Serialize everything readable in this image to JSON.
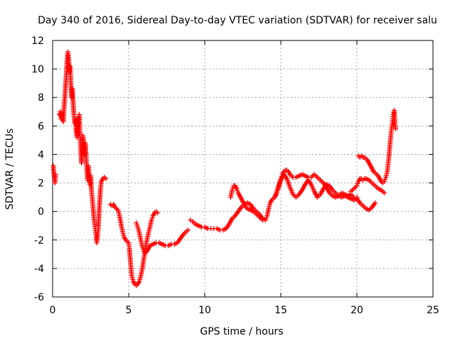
{
  "chart_data": {
    "type": "scatter",
    "title": "Day 340 of 2016, Sidereal Day-to-day VTEC variation (SDTVAR) for receiver salu",
    "xlabel": "GPS time / hours",
    "ylabel": "SDTVAR / TECUs",
    "xlim": [
      0,
      25
    ],
    "ylim": [
      -6,
      12
    ],
    "xticks": [
      "0",
      "5",
      "10",
      "15",
      "20",
      "25"
    ],
    "yticks": [
      "-6",
      "-4",
      "-2",
      "0",
      "2",
      "4",
      "6",
      "8",
      "10",
      "12"
    ],
    "grid": true,
    "marker": "+",
    "color": "#ff0000",
    "series": [
      {
        "name": "SDTVAR",
        "segments": [
          [
            [
              0.05,
              3.2
            ],
            [
              0.1,
              2.5
            ],
            [
              0.15,
              2.0
            ],
            [
              0.2,
              2.6
            ]
          ],
          [
            [
              0.45,
              6.8
            ],
            [
              0.5,
              7.0
            ],
            [
              0.55,
              6.5
            ],
            [
              0.6,
              6.9
            ],
            [
              0.7,
              6.3
            ],
            [
              0.75,
              7.2
            ],
            [
              0.8,
              8.0
            ],
            [
              0.85,
              8.8
            ],
            [
              0.9,
              9.6
            ],
            [
              0.95,
              10.5
            ],
            [
              1.0,
              11.2
            ],
            [
              1.05,
              10.8
            ],
            [
              1.1,
              9.8
            ],
            [
              1.15,
              10.2
            ],
            [
              1.2,
              9.0
            ],
            [
              1.25,
              8.0
            ],
            [
              1.3,
              8.6
            ],
            [
              1.35,
              7.6
            ],
            [
              1.4,
              6.8
            ],
            [
              1.45,
              6.2
            ],
            [
              1.5,
              6.4
            ],
            [
              1.55,
              5.6
            ],
            [
              1.6,
              5.2
            ],
            [
              1.65,
              6.5
            ],
            [
              1.7,
              6.0
            ],
            [
              1.75,
              6.8
            ],
            [
              1.8,
              5.4
            ],
            [
              1.85,
              4.5
            ],
            [
              1.9,
              3.4
            ],
            [
              2.0,
              5.3
            ],
            [
              2.05,
              4.6
            ],
            [
              2.1,
              4.0
            ],
            [
              2.15,
              4.8
            ],
            [
              2.2,
              3.8
            ],
            [
              2.25,
              3.0
            ],
            [
              2.3,
              2.2
            ],
            [
              2.35,
              3.2
            ],
            [
              2.4,
              2.5
            ],
            [
              2.45,
              1.9
            ],
            [
              2.5,
              2.5
            ],
            [
              2.55,
              1.5
            ],
            [
              2.6,
              1.0
            ],
            [
              2.65,
              0.4
            ],
            [
              2.7,
              -0.3
            ],
            [
              2.75,
              -0.8
            ],
            [
              2.8,
              -1.2
            ],
            [
              2.85,
              -1.6
            ],
            [
              2.9,
              -2.2
            ],
            [
              2.95,
              -1.8
            ],
            [
              3.0,
              -1.2
            ],
            [
              3.05,
              -0.2
            ],
            [
              3.1,
              0.8
            ],
            [
              3.15,
              1.6
            ],
            [
              3.2,
              2.1
            ],
            [
              3.3,
              2.3
            ],
            [
              3.4,
              2.4
            ],
            [
              3.5,
              2.3
            ]
          ],
          [
            [
              3.8,
              0.5
            ],
            [
              3.9,
              0.4
            ],
            [
              4.0,
              0.5
            ],
            [
              4.1,
              0.3
            ],
            [
              4.2,
              0.2
            ],
            [
              4.3,
              0.1
            ],
            [
              4.4,
              -0.3
            ],
            [
              4.5,
              -0.9
            ],
            [
              4.6,
              -1.4
            ],
            [
              4.7,
              -1.8
            ],
            [
              4.8,
              -2.0
            ],
            [
              4.9,
              -2.1
            ],
            [
              5.0,
              -2.2
            ],
            [
              5.05,
              -2.6
            ],
            [
              5.1,
              -3.3
            ],
            [
              5.15,
              -3.9
            ],
            [
              5.2,
              -4.5
            ],
            [
              5.3,
              -4.9
            ],
            [
              5.4,
              -5.1
            ],
            [
              5.5,
              -5.2
            ],
            [
              5.6,
              -5.1
            ],
            [
              5.7,
              -4.9
            ],
            [
              5.8,
              -4.5
            ],
            [
              5.9,
              -4.0
            ],
            [
              6.0,
              -3.3
            ],
            [
              6.1,
              -2.6
            ],
            [
              6.2,
              -2.0
            ],
            [
              6.3,
              -1.5
            ],
            [
              6.4,
              -1.1
            ],
            [
              6.5,
              -0.6
            ],
            [
              6.6,
              -0.3
            ],
            [
              6.7,
              -0.1
            ],
            [
              6.8,
              0.0
            ],
            [
              6.9,
              -0.1
            ]
          ],
          [
            [
              5.5,
              -0.8
            ],
            [
              5.6,
              -1.1
            ],
            [
              5.7,
              -1.5
            ],
            [
              5.8,
              -2.0
            ],
            [
              5.9,
              -2.5
            ],
            [
              6.0,
              -2.8
            ],
            [
              6.1,
              -2.9
            ],
            [
              6.2,
              -2.8
            ],
            [
              6.3,
              -2.6
            ],
            [
              6.4,
              -2.4
            ],
            [
              6.6,
              -2.3
            ],
            [
              6.8,
              -2.2
            ],
            [
              7.0,
              -2.2
            ],
            [
              7.2,
              -2.3
            ],
            [
              7.4,
              -2.4
            ],
            [
              7.6,
              -2.4
            ],
            [
              7.8,
              -2.3
            ],
            [
              8.0,
              -2.3
            ],
            [
              8.2,
              -2.2
            ],
            [
              8.4,
              -1.9
            ],
            [
              8.6,
              -1.6
            ],
            [
              8.8,
              -1.4
            ],
            [
              8.9,
              -1.3
            ]
          ],
          [
            [
              9.05,
              -0.6
            ],
            [
              9.2,
              -0.7
            ],
            [
              9.4,
              -0.9
            ],
            [
              9.6,
              -1.0
            ],
            [
              9.8,
              -1.1
            ],
            [
              10.0,
              -1.1
            ],
            [
              10.2,
              -1.2
            ],
            [
              10.4,
              -1.2
            ],
            [
              10.6,
              -1.2
            ],
            [
              10.8,
              -1.2
            ],
            [
              11.0,
              -1.3
            ],
            [
              11.2,
              -1.3
            ],
            [
              11.4,
              -1.2
            ],
            [
              11.6,
              -0.9
            ],
            [
              11.8,
              -0.5
            ],
            [
              12.0,
              -0.3
            ],
            [
              12.2,
              0.0
            ],
            [
              12.4,
              0.3
            ],
            [
              12.6,
              0.5
            ],
            [
              12.8,
              0.6
            ],
            [
              13.0,
              0.5
            ],
            [
              13.2,
              0.2
            ],
            [
              13.4,
              0.0
            ],
            [
              13.6,
              -0.2
            ],
            [
              13.8,
              -0.5
            ],
            [
              14.0,
              -0.6
            ],
            [
              14.1,
              -0.3
            ],
            [
              14.2,
              0.2
            ],
            [
              14.3,
              0.6
            ],
            [
              14.4,
              0.8
            ],
            [
              14.5,
              0.9
            ],
            [
              14.6,
              1.0
            ],
            [
              14.7,
              1.2
            ],
            [
              14.8,
              1.5
            ],
            [
              14.9,
              1.9
            ],
            [
              15.0,
              2.3
            ],
            [
              15.1,
              2.6
            ],
            [
              15.2,
              2.8
            ],
            [
              15.3,
              2.9
            ],
            [
              15.4,
              2.9
            ],
            [
              15.5,
              2.8
            ],
            [
              15.6,
              2.6
            ],
            [
              15.7,
              2.5
            ],
            [
              15.8,
              2.4
            ],
            [
              16.0,
              2.4
            ],
            [
              16.2,
              2.5
            ],
            [
              16.4,
              2.6
            ],
            [
              16.6,
              2.5
            ],
            [
              16.8,
              2.4
            ],
            [
              17.0,
              2.4
            ],
            [
              17.2,
              2.6
            ],
            [
              17.4,
              2.4
            ],
            [
              17.6,
              2.2
            ],
            [
              17.8,
              2.0
            ],
            [
              18.0,
              1.7
            ],
            [
              18.2,
              1.3
            ],
            [
              18.4,
              1.1
            ],
            [
              18.6,
              1.0
            ],
            [
              18.8,
              1.1
            ],
            [
              19.0,
              1.3
            ],
            [
              19.2,
              1.2
            ],
            [
              19.4,
              1.1
            ],
            [
              19.6,
              1.2
            ],
            [
              19.8,
              1.0
            ],
            [
              20.0,
              1.0
            ]
          ],
          [
            [
              11.7,
              1.0
            ],
            [
              11.8,
              1.5
            ],
            [
              11.9,
              1.8
            ],
            [
              12.0,
              1.8
            ],
            [
              12.1,
              1.6
            ],
            [
              12.2,
              1.3
            ],
            [
              12.3,
              1.1
            ],
            [
              12.4,
              0.9
            ],
            [
              12.5,
              0.7
            ],
            [
              12.6,
              0.5
            ],
            [
              12.7,
              0.3
            ],
            [
              12.8,
              0.2
            ],
            [
              13.0,
              0.1
            ],
            [
              13.2,
              0.0
            ],
            [
              13.4,
              -0.2
            ],
            [
              13.6,
              -0.4
            ],
            [
              13.8,
              -0.6
            ]
          ],
          [
            [
              14.6,
              1.0
            ],
            [
              14.8,
              1.6
            ],
            [
              15.0,
              2.2
            ],
            [
              15.2,
              2.6
            ],
            [
              15.4,
              2.3
            ],
            [
              15.6,
              1.7
            ],
            [
              15.8,
              1.2
            ],
            [
              16.0,
              1.0
            ],
            [
              16.2,
              1.2
            ],
            [
              16.4,
              1.5
            ],
            [
              16.6,
              1.9
            ],
            [
              16.8,
              2.2
            ],
            [
              17.0,
              1.9
            ],
            [
              17.2,
              1.4
            ],
            [
              17.4,
              1.0
            ],
            [
              17.6,
              1.2
            ],
            [
              17.8,
              1.6
            ],
            [
              18.0,
              1.9
            ],
            [
              18.2,
              1.8
            ],
            [
              18.4,
              1.5
            ],
            [
              18.6,
              1.3
            ],
            [
              18.8,
              1.1
            ],
            [
              19.0,
              1.0
            ],
            [
              19.2,
              1.1
            ],
            [
              19.4,
              1.0
            ],
            [
              19.6,
              0.9
            ],
            [
              19.8,
              0.8
            ],
            [
              20.0,
              0.9
            ],
            [
              20.2,
              0.6
            ],
            [
              20.4,
              0.4
            ],
            [
              20.6,
              0.2
            ],
            [
              20.8,
              0.1
            ],
            [
              21.0,
              0.3
            ],
            [
              21.2,
              0.6
            ]
          ],
          [
            [
              19.6,
              1.4
            ],
            [
              19.8,
              1.6
            ],
            [
              20.0,
              1.8
            ],
            [
              20.1,
              2.1
            ],
            [
              20.2,
              2.3
            ],
            [
              20.3,
              2.3
            ],
            [
              20.4,
              2.2
            ],
            [
              20.5,
              2.3
            ],
            [
              20.6,
              2.3
            ],
            [
              20.8,
              2.2
            ],
            [
              21.0,
              2.0
            ],
            [
              21.2,
              1.8
            ],
            [
              21.4,
              1.6
            ],
            [
              21.6,
              1.5
            ],
            [
              21.8,
              1.3
            ]
          ],
          [
            [
              20.1,
              3.9
            ],
            [
              20.2,
              3.8
            ],
            [
              20.3,
              3.9
            ],
            [
              20.4,
              3.8
            ],
            [
              20.5,
              3.8
            ],
            [
              20.6,
              3.7
            ],
            [
              20.7,
              3.6
            ],
            [
              20.8,
              3.4
            ],
            [
              20.9,
              3.2
            ],
            [
              21.0,
              3.0
            ],
            [
              21.1,
              2.8
            ],
            [
              21.2,
              2.7
            ],
            [
              21.3,
              2.6
            ],
            [
              21.4,
              2.5
            ],
            [
              21.5,
              2.3
            ],
            [
              21.6,
              2.1
            ],
            [
              21.7,
              2.0
            ],
            [
              21.8,
              2.1
            ],
            [
              21.9,
              2.4
            ],
            [
              22.0,
              2.8
            ],
            [
              22.05,
              3.3
            ],
            [
              22.1,
              3.8
            ],
            [
              22.15,
              4.4
            ],
            [
              22.2,
              5.0
            ],
            [
              22.25,
              5.5
            ],
            [
              22.3,
              6.0
            ],
            [
              22.35,
              6.4
            ],
            [
              22.4,
              6.8
            ],
            [
              22.45,
              7.1
            ],
            [
              22.5,
              6.2
            ],
            [
              22.55,
              5.8
            ]
          ]
        ]
      }
    ]
  }
}
